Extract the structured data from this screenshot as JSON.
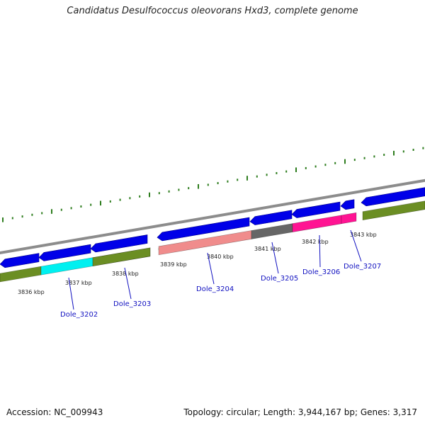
{
  "title": "Candidatus Desulfococcus oleovorans Hxd3, complete genome",
  "footer": {
    "accession": "Accession: NC_009943",
    "summary": "Topology: circular; Length: 3,944,167 bp; Genes: 3,317"
  },
  "colors": {
    "backbone": "#8c8c8c",
    "cds_strand": "#0000e8",
    "feature_default": "#6b8e23",
    "tick": "#2e7d1e",
    "label_link": "#1010c0"
  },
  "scale_labels": [
    "3836 kbp",
    "3837 kbp",
    "3838 kbp",
    "3839 kbp",
    "3840 kbp",
    "3841 kbp",
    "3842 kbp",
    "3843 kbp"
  ],
  "genes": [
    {
      "label": "Dole_3202",
      "color": "#00f0f0"
    },
    {
      "label": "Dole_3203",
      "color": "#6b8e23"
    },
    {
      "label": "Dole_3204",
      "color": "#f08c8c"
    },
    {
      "label": "Dole_3205",
      "color": "#666666"
    },
    {
      "label": "Dole_3206",
      "color": "#ff1493"
    },
    {
      "label": "Dole_3207",
      "color": "#ff1493"
    }
  ]
}
